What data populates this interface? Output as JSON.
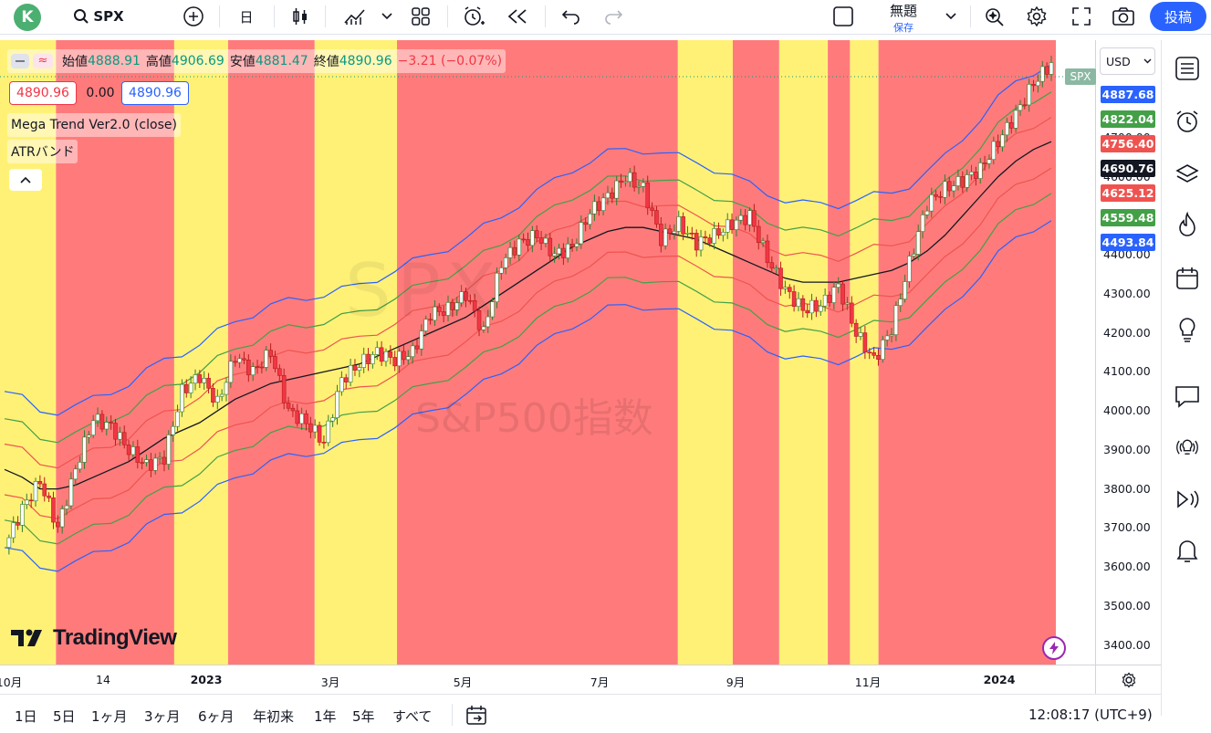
{
  "topbar": {
    "avatar_letter": "K",
    "symbol": "SPX",
    "interval": "日",
    "title": "無題",
    "save": "保存",
    "publish": "投稿"
  },
  "legend": {
    "open_label": "始値",
    "open": "4888.91",
    "high_label": "高値",
    "high": "4906.69",
    "low_label": "安値",
    "low": "4881.47",
    "close_label": "終値",
    "close": "4890.96",
    "change": "−3.21 (−0.07%)",
    "bid": "4890.96",
    "spread": "0.00",
    "ask": "4890.96",
    "indicator1": "Mega Trend Ver2.0 (close)",
    "indicator2": "ATRバンド"
  },
  "watermark": {
    "symbol": "SPX",
    "name": "S&P500指数"
  },
  "brand": "TradingView",
  "price_axis": {
    "currency": "USD",
    "symbol_tag": "SPX",
    "labels": [
      {
        "value": "4887.68",
        "color": "#2962ff"
      },
      {
        "value": "4822.04",
        "color": "#43a047"
      },
      {
        "value": "4756.40",
        "color": "#ef5350"
      },
      {
        "value": "4690.76",
        "color": "#131722"
      },
      {
        "value": "4625.12",
        "color": "#ef5350"
      },
      {
        "value": "4559.48",
        "color": "#43a047"
      },
      {
        "value": "4493.84",
        "color": "#2962ff"
      }
    ],
    "ticks": [
      "4800.00",
      "4700.00",
      "4600.00",
      "4500.00",
      "4400.00",
      "4300.00",
      "4200.00",
      "4100.00",
      "4000.00",
      "3900.00",
      "3800.00",
      "3700.00",
      "3600.00",
      "3500.00",
      "3400.00"
    ]
  },
  "time_axis": [
    "10月",
    "14",
    "2023",
    "3月",
    "5月",
    "7月",
    "9月",
    "11月",
    "2024"
  ],
  "bottom": {
    "ranges": [
      "1日",
      "5日",
      "1ヶ月",
      "3ヶ月",
      "6ヶ月",
      "年初来",
      "1年",
      "5年",
      "すべて"
    ],
    "clock": "12:08:17 (UTC+9)"
  },
  "colors": {
    "red_zone": "#ff7b7b",
    "yellow_zone": "#fff176",
    "accent": "#2962ff",
    "up": "#089981",
    "down": "#f23645"
  },
  "chart_data": {
    "type": "candlestick",
    "symbol": "SPX",
    "y_range": [
      3350,
      4950
    ],
    "x_start": "2022-09-30",
    "x_end": "2024-01-26",
    "months": [
      "2022-10",
      "2022-11",
      "2022-12",
      "2023-01",
      "2023-02",
      "2023-03",
      "2023-04",
      "2023-05",
      "2023-06",
      "2023-07",
      "2023-08",
      "2023-09",
      "2023-10",
      "2023-11",
      "2023-12",
      "2024-01"
    ],
    "closes": [
      3650,
      3750,
      3820,
      3700,
      3850,
      3980,
      3960,
      3900,
      3860,
      3880,
      4050,
      4090,
      4020,
      4140,
      4100,
      4150,
      4000,
      3970,
      3920,
      4080,
      4120,
      4150,
      4130,
      4150,
      4250,
      4260,
      4300,
      4200,
      4380,
      4430,
      4450,
      4400,
      4420,
      4510,
      4550,
      4600,
      4570,
      4440,
      4480,
      4430,
      4450,
      4480,
      4500,
      4390,
      4310,
      4260,
      4270,
      4320,
      4200,
      4130,
      4210,
      4380,
      4530,
      4570,
      4590,
      4620,
      4690,
      4760,
      4840,
      4890
    ],
    "ma_center": [
      3850,
      3830,
      3800,
      3800,
      3810,
      3830,
      3850,
      3870,
      3900,
      3930,
      3950,
      3970,
      4000,
      4030,
      4050,
      4070,
      4080,
      4090,
      4100,
      4110,
      4120,
      4140,
      4160,
      4180,
      4200,
      4220,
      4240,
      4270,
      4300,
      4330,
      4360,
      4390,
      4420,
      4440,
      4460,
      4470,
      4470,
      4460,
      4450,
      4440,
      4420,
      4400,
      4380,
      4360,
      4340,
      4330,
      4330,
      4330,
      4340,
      4350,
      4360,
      4380,
      4410,
      4450,
      4500,
      4550,
      4600,
      4640,
      4670,
      4690
    ],
    "zones": [
      {
        "from": 0.0,
        "to": 0.053,
        "color": "yellow"
      },
      {
        "from": 0.053,
        "to": 0.165,
        "color": "red"
      },
      {
        "from": 0.165,
        "to": 0.216,
        "color": "yellow"
      },
      {
        "from": 0.216,
        "to": 0.298,
        "color": "red"
      },
      {
        "from": 0.298,
        "to": 0.376,
        "color": "yellow"
      },
      {
        "from": 0.376,
        "to": 0.642,
        "color": "red"
      },
      {
        "from": 0.642,
        "to": 0.694,
        "color": "yellow"
      },
      {
        "from": 0.694,
        "to": 0.738,
        "color": "red"
      },
      {
        "from": 0.738,
        "to": 0.784,
        "color": "yellow"
      },
      {
        "from": 0.784,
        "to": 0.805,
        "color": "red"
      },
      {
        "from": 0.805,
        "to": 0.832,
        "color": "yellow"
      },
      {
        "from": 0.832,
        "to": 1.0,
        "color": "red"
      }
    ],
    "bands": [
      {
        "name": "upper3",
        "offset": 200,
        "color": "#2962ff"
      },
      {
        "name": "upper2",
        "offset": 130,
        "color": "#43a047"
      },
      {
        "name": "upper1",
        "offset": 65,
        "color": "#ef5350"
      },
      {
        "name": "lower1",
        "offset": -65,
        "color": "#ef5350"
      },
      {
        "name": "lower2",
        "offset": -130,
        "color": "#43a047"
      },
      {
        "name": "lower3",
        "offset": -200,
        "color": "#2962ff"
      }
    ]
  }
}
